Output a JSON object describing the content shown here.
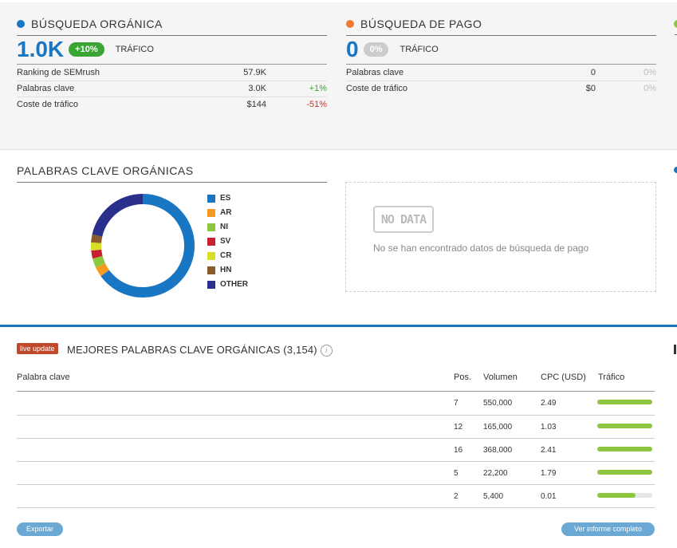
{
  "organic": {
    "title": "BÚSQUEDA ORGÁNICA",
    "value": "1.0K",
    "badge": "+10%",
    "traffic_label": "TRÁFICO",
    "rows": [
      {
        "label": "Ranking de SEMrush",
        "value": "57.9K",
        "change": ""
      },
      {
        "label": "Palabras clave",
        "value": "3.0K",
        "change": "+1%"
      },
      {
        "label": "Coste de tráfico",
        "value": "$144",
        "change": "-51%"
      }
    ]
  },
  "paid": {
    "title": "BÚSQUEDA DE PAGO",
    "value": "0",
    "badge": "0%",
    "traffic_label": "TRÁFICO",
    "rows": [
      {
        "label": "Palabras clave",
        "value": "0",
        "change": "0%"
      },
      {
        "label": "Coste de tráfico",
        "value": "$0",
        "change": "0%"
      }
    ]
  },
  "keywords_chart": {
    "title": "PALABRAS CLAVE ORGÁNICAS"
  },
  "chart_data": {
    "type": "pie",
    "categories": [
      "ES",
      "AR",
      "NI",
      "SV",
      "CR",
      "HN",
      "OTHER"
    ],
    "values": [
      65,
      3,
      3,
      2.5,
      2.5,
      2.5,
      21.5
    ],
    "colors": [
      "#1976c2",
      "#f39a1f",
      "#8dc63f",
      "#c8202f",
      "#d8e025",
      "#8a5a2c",
      "#2b2f8c"
    ]
  },
  "nodata": {
    "badge": "NO DATA",
    "message": "No se han encontrado datos de búsqueda de pago"
  },
  "top_keywords": {
    "live": "live update",
    "title": "MEJORES PALABRAS CLAVE ORGÁNICAS (3,154)",
    "info_icon": "i",
    "columns": [
      "Palabra clave",
      "Pos.",
      "Volumen",
      "CPC (USD)",
      "Tráfico"
    ],
    "rows": [
      {
        "keyword": "",
        "pos": "7",
        "volume": "550,000",
        "cpc": "2.49",
        "traffic": 1.0
      },
      {
        "keyword": "",
        "pos": "12",
        "volume": "165,000",
        "cpc": "1.03",
        "traffic": 1.0
      },
      {
        "keyword": "",
        "pos": "16",
        "volume": "368,000",
        "cpc": "2.41",
        "traffic": 1.0
      },
      {
        "keyword": "",
        "pos": "5",
        "volume": "22,200",
        "cpc": "1.79",
        "traffic": 1.0
      },
      {
        "keyword": "",
        "pos": "2",
        "volume": "5,400",
        "cpc": "0.01",
        "traffic": 0.69
      }
    ],
    "export_label": "Exportar",
    "full_report_label": "Ver informe completo"
  }
}
